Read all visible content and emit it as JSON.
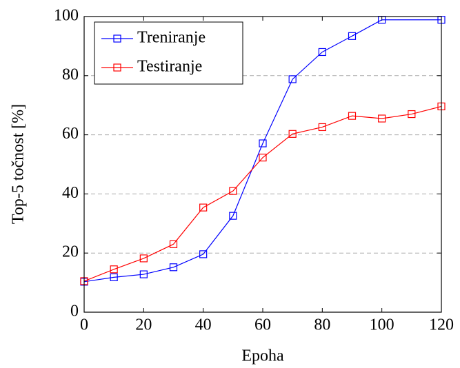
{
  "chart_data": {
    "type": "line",
    "x_label": "Epoha",
    "y_label": "Top-5 točnost [%]",
    "xlim": [
      0,
      120
    ],
    "ylim": [
      0,
      100
    ],
    "xticks": [
      0,
      20,
      40,
      60,
      80,
      100,
      120
    ],
    "yticks": [
      0,
      20,
      40,
      60,
      80,
      100
    ],
    "grid": true,
    "legend": "upper-left",
    "series": [
      {
        "name": "Treniranje",
        "color": "#0000ff",
        "x": [
          0,
          10,
          20,
          30,
          40,
          50,
          60,
          70,
          80,
          90,
          100,
          120
        ],
        "values": [
          10.3,
          11.8,
          12.8,
          15.2,
          19.6,
          32.6,
          57.1,
          78.8,
          88.0,
          93.4,
          98.9,
          98.9
        ]
      },
      {
        "name": "Testiranje",
        "color": "#ff0000",
        "x": [
          0,
          10,
          20,
          30,
          40,
          50,
          60,
          70,
          80,
          90,
          100,
          110,
          120
        ],
        "values": [
          10.5,
          14.5,
          18.2,
          23.0,
          35.4,
          41.0,
          52.3,
          60.3,
          62.6,
          66.4,
          65.5,
          67.0,
          69.6
        ]
      }
    ]
  }
}
